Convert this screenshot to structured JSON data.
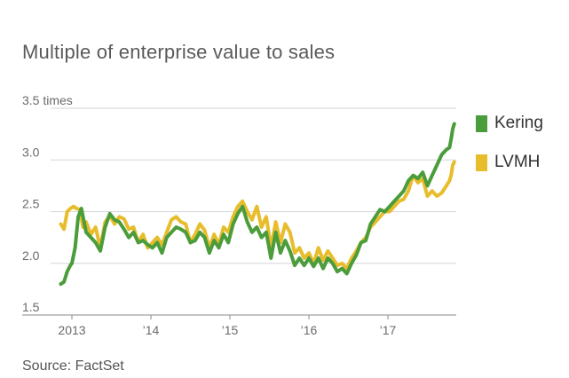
{
  "title": "Multiple of enterprise value to sales",
  "source": "Source: FactSet",
  "chart_data": {
    "type": "line",
    "title": "Multiple of enterprise value to sales",
    "ylabel": "times",
    "ylim": [
      1.5,
      3.5
    ],
    "xlim": [
      2012.78,
      2017.9
    ],
    "yticks": [
      {
        "value": 3.5,
        "label": "3.5 times"
      },
      {
        "value": 3.0,
        "label": "3.0"
      },
      {
        "value": 2.5,
        "label": "2.5"
      },
      {
        "value": 2.0,
        "label": "2.0"
      },
      {
        "value": 1.5,
        "label": "1.5"
      }
    ],
    "xticks": [
      {
        "value": 2013,
        "label": "2013"
      },
      {
        "value": 2014,
        "label": "’14"
      },
      {
        "value": 2015,
        "label": "’15"
      },
      {
        "value": 2016,
        "label": "’16"
      },
      {
        "value": 2017,
        "label": "’17"
      }
    ],
    "grid": true,
    "legend_position": "right",
    "series": [
      {
        "name": "LVMH",
        "color": "#E8BD2C",
        "x": [
          2012.86,
          2012.9,
          2012.94,
          2012.98,
          2013.02,
          2013.06,
          2013.1,
          2013.14,
          2013.18,
          2013.24,
          2013.3,
          2013.36,
          2013.42,
          2013.48,
          2013.54,
          2013.6,
          2013.66,
          2013.72,
          2013.78,
          2013.84,
          2013.9,
          2013.96,
          2014.02,
          2014.08,
          2014.14,
          2014.2,
          2014.26,
          2014.32,
          2014.38,
          2014.44,
          2014.5,
          2014.56,
          2014.62,
          2014.68,
          2014.74,
          2014.8,
          2014.86,
          2014.92,
          2014.98,
          2015.04,
          2015.1,
          2015.16,
          2015.22,
          2015.28,
          2015.34,
          2015.4,
          2015.46,
          2015.52,
          2015.58,
          2015.64,
          2015.7,
          2015.76,
          2015.82,
          2015.88,
          2015.94,
          2016.0,
          2016.06,
          2016.12,
          2016.18,
          2016.24,
          2016.3,
          2016.36,
          2016.42,
          2016.48,
          2016.54,
          2016.6,
          2016.66,
          2016.72,
          2016.78,
          2016.84,
          2016.9,
          2016.96,
          2017.02,
          2017.08,
          2017.14,
          2017.2,
          2017.26,
          2017.32,
          2017.38,
          2017.44,
          2017.5,
          2017.56,
          2017.62,
          2017.68,
          2017.74,
          2017.78,
          2017.8,
          2017.82,
          2017.84
        ],
        "values": [
          2.38,
          2.33,
          2.5,
          2.53,
          2.55,
          2.53,
          2.52,
          2.35,
          2.4,
          2.28,
          2.35,
          2.15,
          2.4,
          2.46,
          2.38,
          2.45,
          2.43,
          2.33,
          2.35,
          2.2,
          2.28,
          2.15,
          2.2,
          2.25,
          2.18,
          2.3,
          2.42,
          2.45,
          2.4,
          2.38,
          2.2,
          2.28,
          2.38,
          2.32,
          2.15,
          2.28,
          2.18,
          2.35,
          2.3,
          2.45,
          2.55,
          2.6,
          2.5,
          2.42,
          2.55,
          2.35,
          2.45,
          2.15,
          2.4,
          2.2,
          2.38,
          2.3,
          2.1,
          2.15,
          2.05,
          2.1,
          2.0,
          2.15,
          2.03,
          2.12,
          2.05,
          1.98,
          2.0,
          1.95,
          2.05,
          2.12,
          2.2,
          2.25,
          2.35,
          2.4,
          2.45,
          2.5,
          2.5,
          2.55,
          2.6,
          2.62,
          2.7,
          2.85,
          2.78,
          2.82,
          2.65,
          2.7,
          2.65,
          2.68,
          2.75,
          2.8,
          2.85,
          2.95,
          2.98
        ]
      },
      {
        "name": "Kering",
        "color": "#4B9C3B",
        "x": [
          2012.86,
          2012.9,
          2012.94,
          2012.98,
          2013.0,
          2013.04,
          2013.08,
          2013.12,
          2013.18,
          2013.24,
          2013.3,
          2013.36,
          2013.42,
          2013.48,
          2013.54,
          2013.6,
          2013.66,
          2013.72,
          2013.78,
          2013.84,
          2013.9,
          2013.96,
          2014.02,
          2014.08,
          2014.14,
          2014.2,
          2014.26,
          2014.32,
          2014.38,
          2014.44,
          2014.5,
          2014.56,
          2014.62,
          2014.68,
          2014.74,
          2014.8,
          2014.86,
          2014.92,
          2014.98,
          2015.04,
          2015.1,
          2015.16,
          2015.22,
          2015.28,
          2015.34,
          2015.4,
          2015.46,
          2015.52,
          2015.58,
          2015.64,
          2015.7,
          2015.76,
          2015.82,
          2015.88,
          2015.94,
          2016.0,
          2016.06,
          2016.12,
          2016.18,
          2016.24,
          2016.3,
          2016.36,
          2016.42,
          2016.48,
          2016.54,
          2016.6,
          2016.66,
          2016.72,
          2016.78,
          2016.84,
          2016.9,
          2016.96,
          2017.02,
          2017.08,
          2017.14,
          2017.2,
          2017.26,
          2017.32,
          2017.38,
          2017.44,
          2017.5,
          2017.56,
          2017.62,
          2017.68,
          2017.74,
          2017.78,
          2017.8,
          2017.82,
          2017.84
        ],
        "values": [
          1.8,
          1.82,
          1.92,
          1.98,
          2.0,
          2.15,
          2.45,
          2.53,
          2.3,
          2.25,
          2.2,
          2.12,
          2.35,
          2.48,
          2.42,
          2.4,
          2.33,
          2.25,
          2.3,
          2.2,
          2.22,
          2.18,
          2.15,
          2.2,
          2.1,
          2.25,
          2.3,
          2.35,
          2.33,
          2.3,
          2.2,
          2.22,
          2.3,
          2.25,
          2.1,
          2.22,
          2.15,
          2.28,
          2.2,
          2.38,
          2.48,
          2.55,
          2.4,
          2.3,
          2.35,
          2.25,
          2.3,
          2.05,
          2.3,
          2.1,
          2.22,
          2.12,
          1.98,
          2.05,
          1.98,
          2.05,
          1.97,
          2.05,
          1.95,
          2.05,
          2.0,
          1.92,
          1.95,
          1.9,
          2.0,
          2.08,
          2.2,
          2.22,
          2.38,
          2.45,
          2.52,
          2.5,
          2.55,
          2.6,
          2.65,
          2.7,
          2.8,
          2.85,
          2.82,
          2.88,
          2.75,
          2.85,
          2.95,
          3.05,
          3.1,
          3.12,
          3.2,
          3.3,
          3.35
        ]
      }
    ]
  },
  "legend": [
    {
      "label": "Kering",
      "color": "#4B9C3B"
    },
    {
      "label": "LVMH",
      "color": "#E8BD2C"
    }
  ]
}
